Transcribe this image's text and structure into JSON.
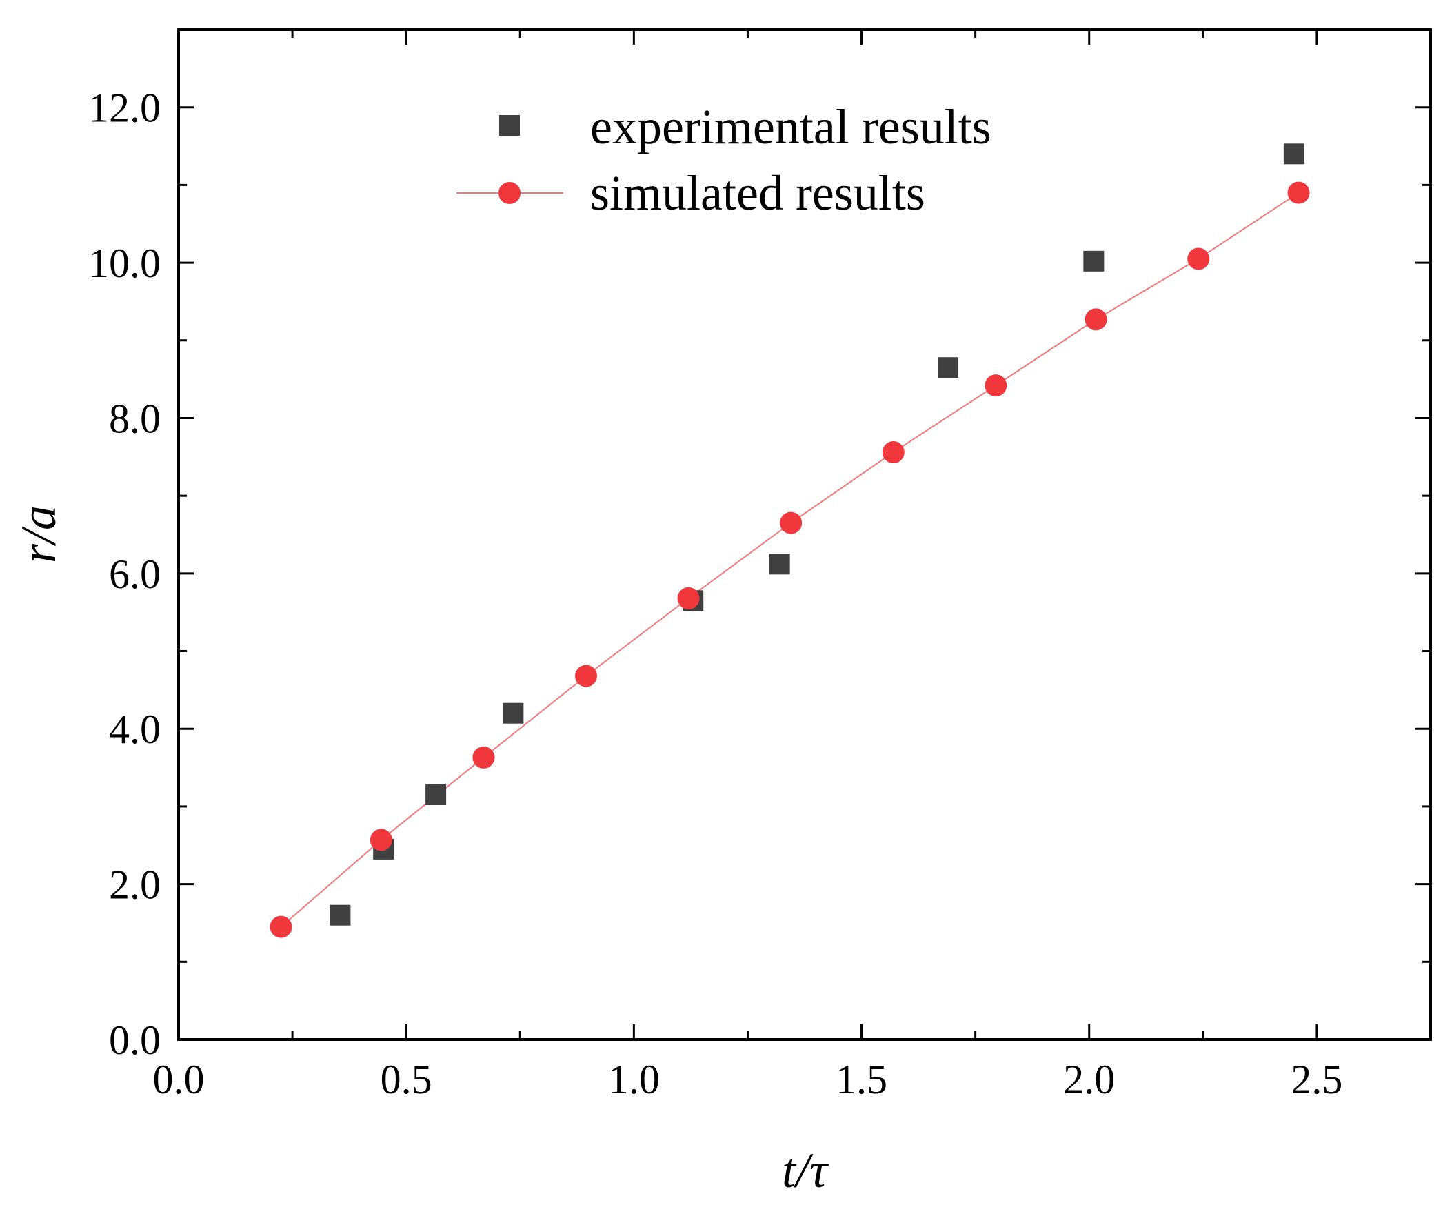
{
  "chart_data": {
    "type": "scatter",
    "title": "",
    "xlabel": "t/τ",
    "ylabel": "r/a",
    "xlim": [
      0.0,
      2.75
    ],
    "ylim": [
      0.0,
      13.0
    ],
    "xticks": [
      0.0,
      0.5,
      1.0,
      1.5,
      2.0,
      2.5
    ],
    "xtick_labels": [
      "0.0",
      "0.5",
      "1.0",
      "1.5",
      "2.0",
      "2.5"
    ],
    "yticks": [
      0.0,
      2.0,
      4.0,
      6.0,
      8.0,
      10.0,
      12.0
    ],
    "ytick_labels": [
      "0.0",
      "2.0",
      "4.0",
      "6.0",
      "8.0",
      "10.0",
      "12.0"
    ],
    "grid": false,
    "legend_position": "top-center",
    "series": [
      {
        "name": "experimental results",
        "marker": "square",
        "line": false,
        "color": "#404040",
        "x": [
          0.355,
          0.45,
          0.565,
          0.735,
          1.13,
          1.32,
          1.69,
          2.01,
          2.45
        ],
        "y": [
          1.6,
          2.45,
          3.15,
          4.2,
          5.65,
          6.12,
          8.65,
          10.02,
          11.4
        ]
      },
      {
        "name": "simulated results",
        "marker": "circle",
        "line": true,
        "color": "#f0383c",
        "line_color": "#f07a7a",
        "x": [
          0.225,
          0.445,
          0.67,
          0.895,
          1.12,
          1.345,
          1.57,
          1.795,
          2.015,
          2.24,
          2.46
        ],
        "y": [
          1.45,
          2.57,
          3.63,
          4.68,
          5.68,
          6.65,
          7.56,
          8.42,
          9.27,
          10.05,
          10.9
        ]
      }
    ]
  }
}
